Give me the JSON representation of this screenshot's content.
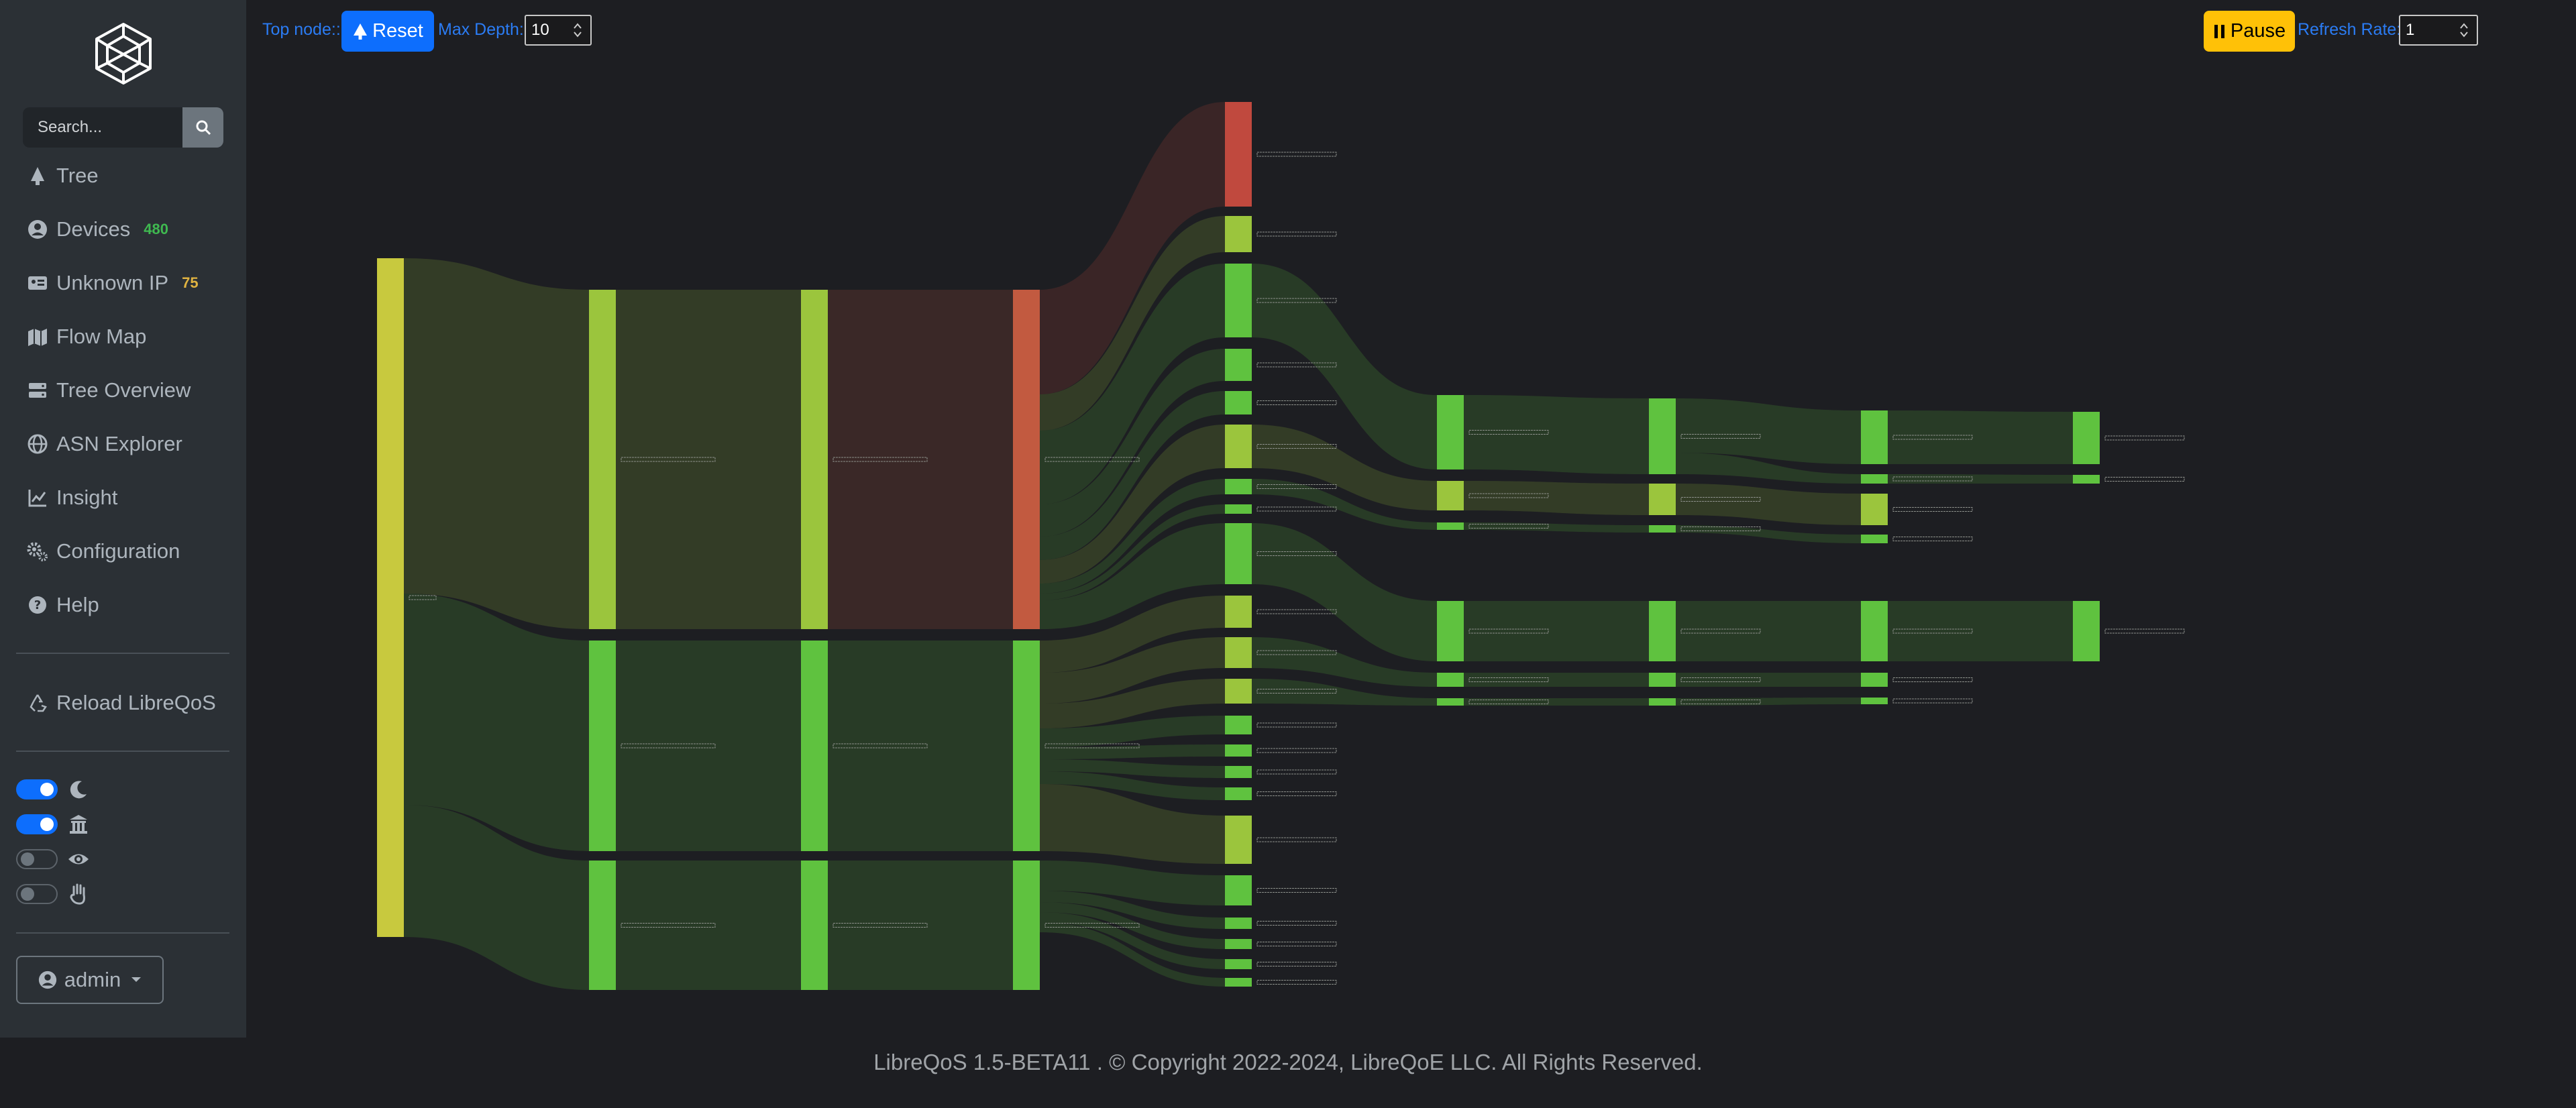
{
  "sidebar": {
    "search": {
      "placeholder": "Search..."
    },
    "nav": [
      {
        "label": "Tree",
        "icon": "tree-icon"
      },
      {
        "label": "Devices",
        "icon": "user-circle-icon",
        "badge": "480",
        "badge_color": "#3fb950"
      },
      {
        "label": "Unknown IP",
        "icon": "id-card-icon",
        "badge": "75",
        "badge_color": "#e0b341"
      },
      {
        "label": "Flow Map",
        "icon": "map-icon"
      },
      {
        "label": "Tree Overview",
        "icon": "server-icon"
      },
      {
        "label": "ASN Explorer",
        "icon": "globe-icon"
      },
      {
        "label": "Insight",
        "icon": "line-chart-icon"
      },
      {
        "label": "Configuration",
        "icon": "gears-icon"
      },
      {
        "label": "Help",
        "icon": "question-circle-icon"
      }
    ],
    "reload_label": "Reload LibreQoS",
    "toggles": [
      {
        "icon": "moon-icon",
        "on": true
      },
      {
        "icon": "temple-icon",
        "on": true
      },
      {
        "icon": "eye-icon",
        "on": false
      },
      {
        "icon": "hand-icon",
        "on": false
      }
    ],
    "user_label": "admin"
  },
  "toolbar": {
    "top_node_label": "Top node::",
    "reset_label": "Reset",
    "max_depth_label": "Max Depth:",
    "max_depth_value": "10",
    "pause_label": "Pause",
    "refresh_rate_label": "Refresh Rate:",
    "refresh_rate_value": "1"
  },
  "sankey": {
    "colors": {
      "yellow": "#c8c93e",
      "lime": "#9bc53d",
      "green": "#5fc23f",
      "red": "#c0493e",
      "redorange": "#c25a40"
    }
  },
  "footer": {
    "text": "LibreQoS 1.5-BETA11 . © Copyright 2022-2024, LibreQoE LLC. All Rights Reserved."
  }
}
